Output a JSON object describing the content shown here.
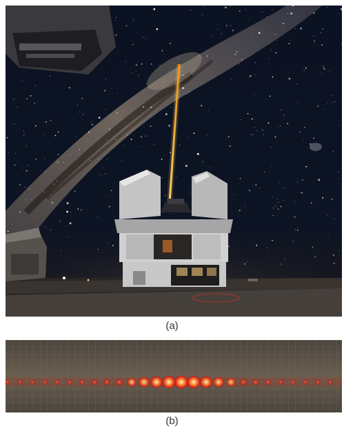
{
  "figure": {
    "panel_a": {
      "caption": "(a)"
    },
    "panel_b": {
      "caption": "(b)"
    }
  },
  "colors": {
    "night_sky": "#0a0f1a",
    "milky_way": "#8a7a6a",
    "laser_beam": "#ffb020",
    "observatory_wall": "#c8c8c8",
    "graph_paper": "#5a5248",
    "laser_spot": "#ff3a1a",
    "laser_spot_core": "#fff3c8"
  },
  "icons": {
    "observatory": "telescope-building",
    "laser": "laser-beam",
    "diffraction": "interference-pattern"
  }
}
